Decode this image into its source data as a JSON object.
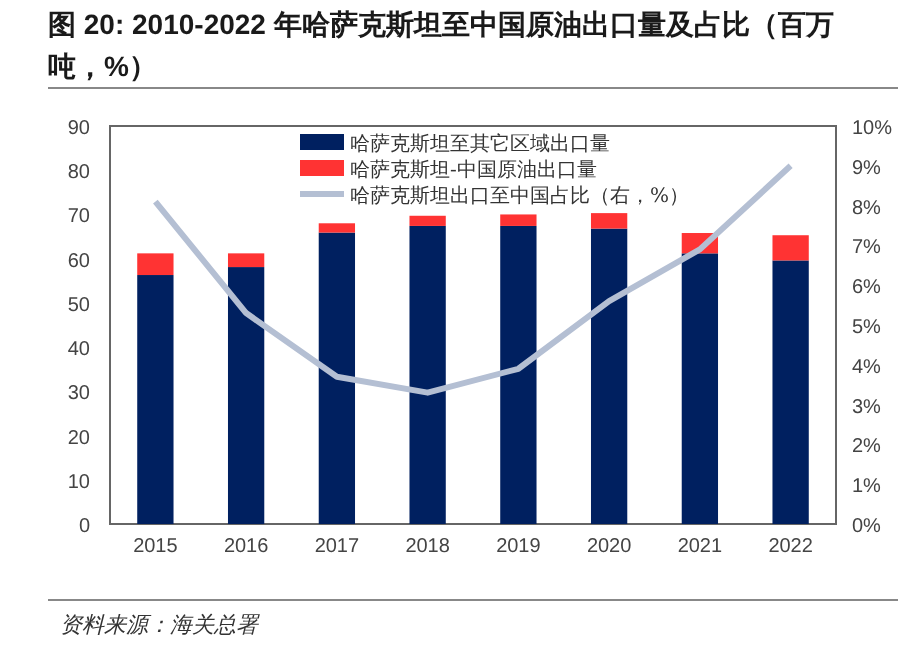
{
  "chart_data": {
    "type": "bar",
    "stacked": true,
    "title": "图 20: 2010-2022 年哈萨克斯坦至中国原油出口量及占比（百万吨，%）",
    "annotations": [
      "资料来源：海关总署"
    ],
    "categories": [
      "2015",
      "2016",
      "2017",
      "2018",
      "2019",
      "2020",
      "2021",
      "2022"
    ],
    "series": [
      {
        "name": "哈萨克斯坦至其它区域出口量",
        "color": "#002060",
        "values": [
          56.3,
          58.1,
          65.9,
          67.4,
          67.4,
          66.8,
          61.2,
          59.6
        ]
      },
      {
        "name": "哈萨克斯坦-中国原油出口量",
        "color": "#ff3333",
        "values": [
          4.9,
          3.1,
          2.1,
          2.3,
          2.6,
          3.5,
          4.6,
          5.7
        ]
      },
      {
        "name": "哈萨克斯坦出口至中国占比（右，%）",
        "color": "#b4bfd3",
        "type": "line",
        "axis": "y2",
        "values": [
          8.1,
          5.3,
          3.7,
          3.3,
          3.9,
          5.6,
          6.9,
          9.0
        ]
      }
    ],
    "ylim": [
      0,
      90
    ],
    "yticks": [
      0,
      10,
      20,
      30,
      40,
      50,
      60,
      70,
      80,
      90
    ],
    "y2lim": [
      0,
      10
    ],
    "y2ticks": [
      {
        "value": 0,
        "label": "0%"
      },
      {
        "value": 1,
        "label": "1%"
      },
      {
        "value": 2,
        "label": "2%"
      },
      {
        "value": 3,
        "label": "3%"
      },
      {
        "value": 4,
        "label": "4%"
      },
      {
        "value": 5,
        "label": "5%"
      },
      {
        "value": 6,
        "label": "6%"
      },
      {
        "value": 7,
        "label": "7%"
      },
      {
        "value": 8,
        "label": "8%"
      },
      {
        "value": 9,
        "label": "9%"
      },
      {
        "value": 10,
        "label": "10%"
      }
    ],
    "legend": "top"
  }
}
